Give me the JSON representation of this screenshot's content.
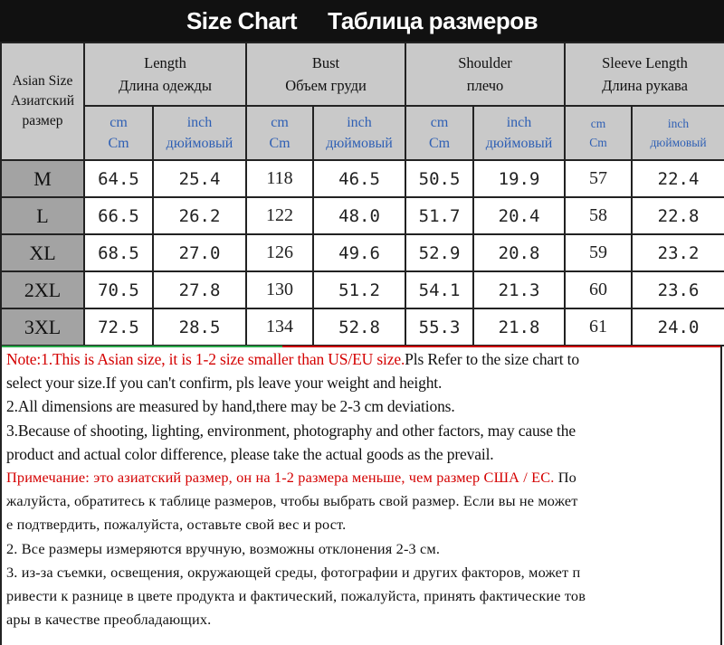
{
  "title": {
    "en": "Size Chart",
    "ru": "Таблица размеров"
  },
  "headers": {
    "asian": [
      "Asian Size",
      "Азиатский",
      "размер"
    ],
    "length": [
      "Length",
      "Длина одежды"
    ],
    "bust": [
      "Bust",
      "Объем груди"
    ],
    "shoulder": [
      "Shoulder",
      "плечо"
    ],
    "sleeve": [
      "Sleeve Length",
      "Длина рукава"
    ]
  },
  "units": {
    "cm": [
      "cm",
      "Cm"
    ],
    "inch": [
      "inch",
      "дюймовый"
    ]
  },
  "rows": [
    {
      "size": "M",
      "length_cm": "64.5",
      "length_in": "25.4",
      "bust_cm": "118",
      "bust_in": "46.5",
      "shoulder_cm": "50.5",
      "shoulder_in": "19.9",
      "sleeve_cm": "57",
      "sleeve_in": "22.4"
    },
    {
      "size": "L",
      "length_cm": "66.5",
      "length_in": "26.2",
      "bust_cm": "122",
      "bust_in": "48.0",
      "shoulder_cm": "51.7",
      "shoulder_in": "20.4",
      "sleeve_cm": "58",
      "sleeve_in": "22.8"
    },
    {
      "size": "XL",
      "length_cm": "68.5",
      "length_in": "27.0",
      "bust_cm": "126",
      "bust_in": "49.6",
      "shoulder_cm": "52.9",
      "shoulder_in": "20.8",
      "sleeve_cm": "59",
      "sleeve_in": "23.2"
    },
    {
      "size": "2XL",
      "length_cm": "70.5",
      "length_in": "27.8",
      "bust_cm": "130",
      "bust_in": "51.2",
      "shoulder_cm": "54.1",
      "shoulder_in": "21.3",
      "sleeve_cm": "60",
      "sleeve_in": "23.6"
    },
    {
      "size": "3XL",
      "length_cm": "72.5",
      "length_in": "28.5",
      "bust_cm": "134",
      "bust_in": "52.8",
      "shoulder_cm": "55.3",
      "shoulder_in": "21.8",
      "sleeve_cm": "61",
      "sleeve_in": "24.0"
    }
  ],
  "notes_en": {
    "note1_red": "Note:1.This is Asian size, it is 1-2 size smaller than US/EU size.",
    "note1_rest_a": "Pls Refer to the size chart to",
    "note1_rest_b": "select your size.If you can't confirm, pls leave your weight and height.",
    "note2": "2.All dimensions are measured by hand,there may be 2-3 cm deviations.",
    "note3_a": "3.Because of shooting, lighting, environment, photography and other factors, may cause the",
    "note3_b": "product and actual color difference, please take the actual goods as the prevail."
  },
  "notes_ru": {
    "note1_red": "Примечание: это азиатский размер, он на 1-2 размера меньше, чем размер США / ЕС.",
    "note1_rest_a": " По",
    "note1_rest_b": "жалуйста, обратитесь к таблице размеров, чтобы выбрать свой размер. Если вы не может",
    "note1_rest_c": "е подтвердить, пожалуйста, оставьте свой вес и рост.",
    "note2": "2. Все размеры измеряются вручную, возможны отклонения 2-3 см.",
    "note3_a": "3. из-за съемки, освещения, окружающей среды, фотографии и других факторов, может п",
    "note3_b": "ривести к разнице в цвете продукта и фактический, пожалуйста, принять фактические тов",
    "note3_c": "ары в качестве преобладающих."
  }
}
